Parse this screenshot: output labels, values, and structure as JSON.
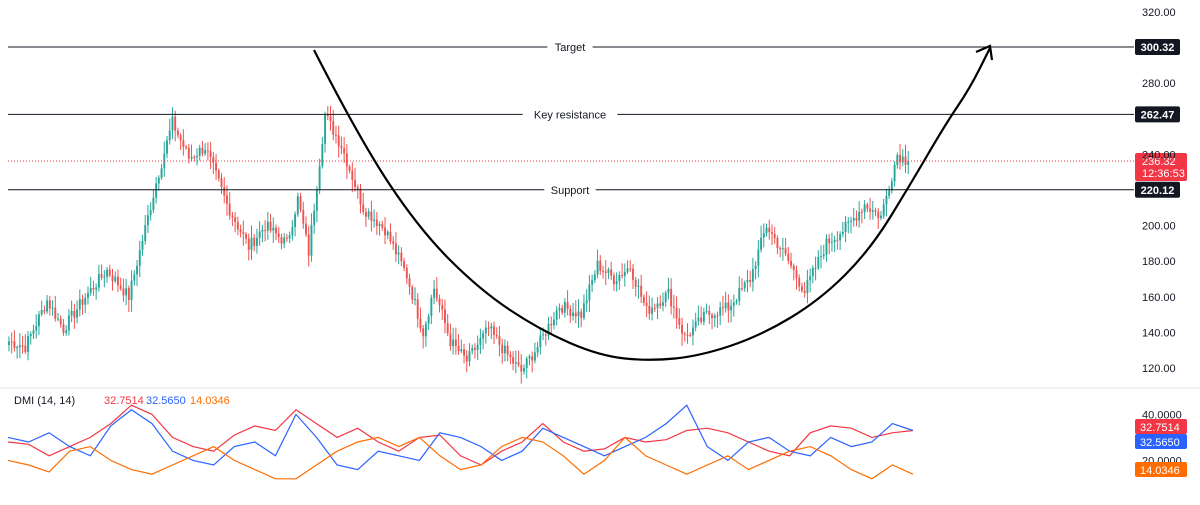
{
  "chart_data": [
    {
      "type": "candlestick",
      "title": "",
      "y_ticks": [
        "320.00",
        "280.00",
        "240.00",
        "200.00",
        "180.00",
        "160.00",
        "140.00",
        "120.00"
      ],
      "y_tick_values": [
        320,
        280,
        240,
        200,
        180,
        160,
        140,
        120
      ],
      "ylim": [
        110,
        325
      ],
      "grid": false,
      "colors": {
        "up": "#26a69a",
        "down": "#ef5350",
        "level_line": "#131722",
        "arrow": "#000000"
      },
      "levels": [
        {
          "name": "Target",
          "value": 300.32,
          "tag": "300.32"
        },
        {
          "name": "Key resistance",
          "value": 262.47,
          "tag": "262.47"
        },
        {
          "name": "Support",
          "value": 220.12,
          "tag": "220.12"
        }
      ],
      "last_price": {
        "value": 236.32,
        "price_label": "236.32",
        "countdown": "12:36:53",
        "color": "#f23645"
      },
      "swings": [
        {
          "i": 0,
          "p": 135
        },
        {
          "i": 6,
          "p": 132
        },
        {
          "i": 14,
          "p": 158
        },
        {
          "i": 20,
          "p": 142
        },
        {
          "i": 28,
          "p": 160
        },
        {
          "i": 36,
          "p": 175
        },
        {
          "i": 44,
          "p": 160
        },
        {
          "i": 54,
          "p": 224
        },
        {
          "i": 60,
          "p": 258
        },
        {
          "i": 66,
          "p": 238
        },
        {
          "i": 72,
          "p": 244
        },
        {
          "i": 80,
          "p": 212
        },
        {
          "i": 88,
          "p": 188
        },
        {
          "i": 94,
          "p": 200
        },
        {
          "i": 102,
          "p": 190
        },
        {
          "i": 106,
          "p": 215
        },
        {
          "i": 110,
          "p": 185
        },
        {
          "i": 116,
          "p": 262
        },
        {
          "i": 122,
          "p": 245
        },
        {
          "i": 130,
          "p": 210
        },
        {
          "i": 138,
          "p": 198
        },
        {
          "i": 146,
          "p": 172
        },
        {
          "i": 152,
          "p": 140
        },
        {
          "i": 156,
          "p": 165
        },
        {
          "i": 162,
          "p": 135
        },
        {
          "i": 168,
          "p": 124
        },
        {
          "i": 176,
          "p": 142
        },
        {
          "i": 184,
          "p": 125
        },
        {
          "i": 188,
          "p": 118
        },
        {
          "i": 194,
          "p": 132
        },
        {
          "i": 202,
          "p": 155
        },
        {
          "i": 210,
          "p": 150
        },
        {
          "i": 216,
          "p": 178
        },
        {
          "i": 222,
          "p": 170
        },
        {
          "i": 228,
          "p": 177
        },
        {
          "i": 234,
          "p": 152
        },
        {
          "i": 242,
          "p": 162
        },
        {
          "i": 248,
          "p": 137
        },
        {
          "i": 256,
          "p": 150
        },
        {
          "i": 264,
          "p": 154
        },
        {
          "i": 272,
          "p": 170
        },
        {
          "i": 278,
          "p": 200
        },
        {
          "i": 286,
          "p": 180
        },
        {
          "i": 292,
          "p": 163
        },
        {
          "i": 300,
          "p": 190
        },
        {
          "i": 308,
          "p": 200
        },
        {
          "i": 314,
          "p": 212
        },
        {
          "i": 320,
          "p": 205
        },
        {
          "i": 326,
          "p": 240
        },
        {
          "i": 330,
          "p": 236
        }
      ],
      "candle_count": 331
    },
    {
      "type": "line",
      "title": "DMI (14, 14)",
      "y_ticks": [
        "40.0000",
        "20.0000"
      ],
      "y_tick_values": [
        40,
        20
      ],
      "ylim": [
        8,
        48
      ],
      "grid": false,
      "series": [
        {
          "name": "",
          "value_label": "32.7514",
          "color": "#f23645",
          "points": [
            28,
            27,
            22,
            26,
            30,
            36,
            44,
            40,
            30,
            26,
            24,
            31,
            35,
            33,
            42,
            36,
            30,
            34,
            28,
            24,
            30,
            31,
            22,
            18,
            24,
            28,
            36,
            28,
            24,
            25,
            30,
            28,
            29,
            33,
            34,
            32,
            28,
            24,
            22,
            32,
            35,
            34,
            30,
            32,
            33
          ]
        },
        {
          "name": "",
          "value_label": "32.5650",
          "color": "#2962ff",
          "points": [
            30,
            28,
            32,
            26,
            22,
            35,
            42,
            36,
            24,
            20,
            18,
            26,
            28,
            22,
            40,
            30,
            18,
            16,
            24,
            22,
            20,
            32,
            30,
            26,
            20,
            24,
            34,
            30,
            26,
            22,
            26,
            30,
            36,
            44,
            26,
            20,
            28,
            30,
            24,
            22,
            30,
            26,
            28,
            36,
            33
          ]
        },
        {
          "name": "",
          "value_label": "14.0346",
          "color": "#ff6d00",
          "points": [
            20,
            18,
            15,
            24,
            26,
            20,
            16,
            14,
            18,
            22,
            26,
            20,
            16,
            12,
            12,
            18,
            24,
            28,
            30,
            26,
            30,
            22,
            16,
            18,
            26,
            30,
            28,
            22,
            14,
            20,
            30,
            22,
            18,
            14,
            18,
            22,
            16,
            20,
            24,
            26,
            22,
            16,
            12,
            18,
            14
          ]
        }
      ]
    }
  ]
}
